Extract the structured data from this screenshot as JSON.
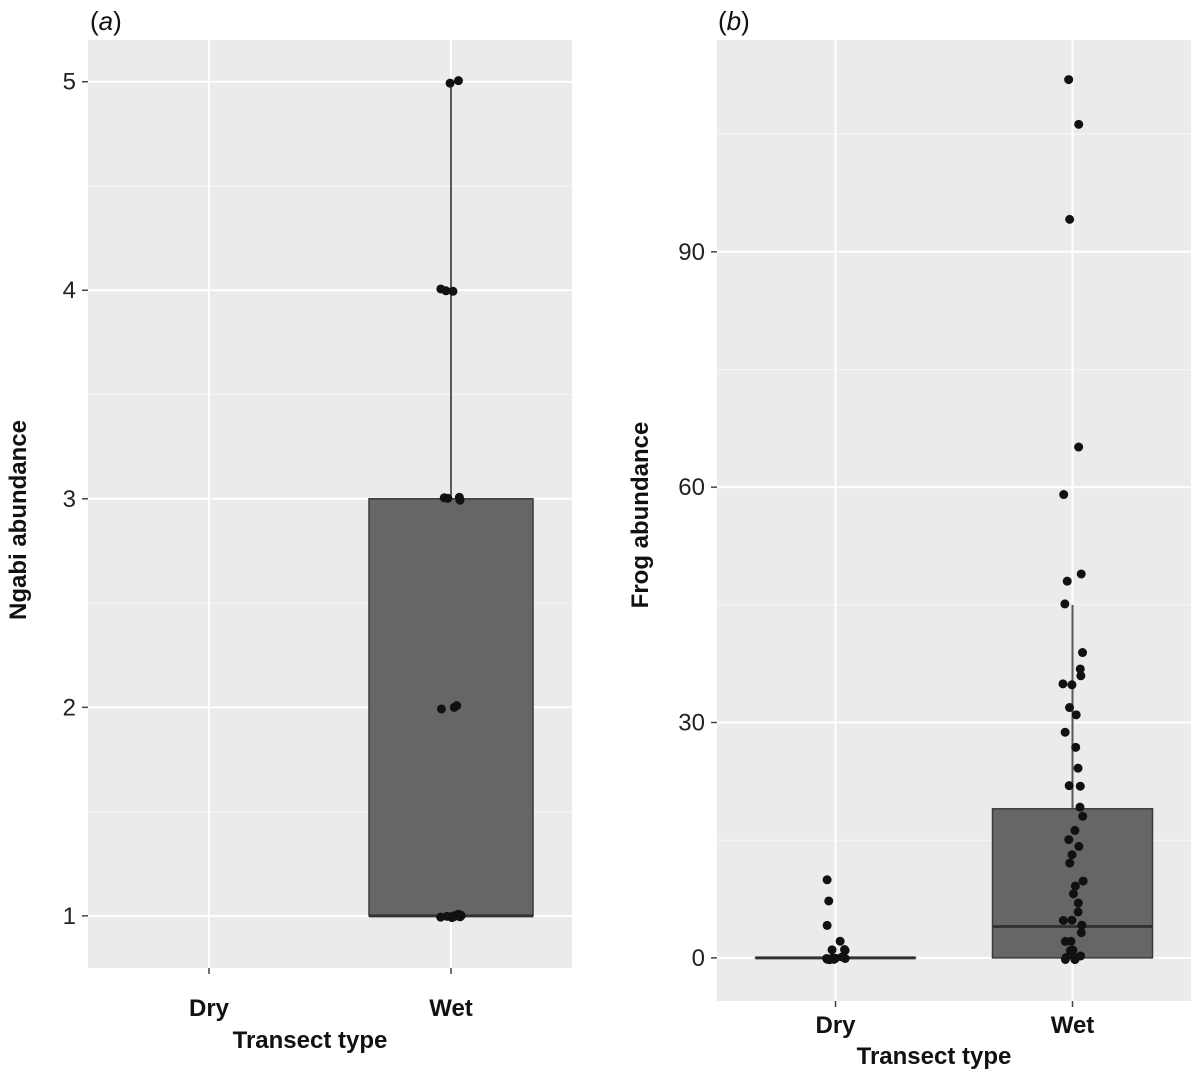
{
  "chart_data": [
    {
      "type": "box",
      "panel_label": "a",
      "xlabel": "Transect type",
      "ylabel": "Ngabi abundance",
      "categories": [
        "Dry",
        "Wet"
      ],
      "ylim": [
        0.75,
        5.2
      ],
      "yticks": [
        1,
        2,
        3,
        4,
        5
      ],
      "grid": true,
      "boxes": [
        null,
        {
          "category": "Wet",
          "q1": 1,
          "median": 1,
          "q3": 3,
          "whisker_low": 1,
          "whisker_high": 5
        }
      ],
      "points": [
        {
          "category": "Wet",
          "values": [
            5,
            5,
            4,
            4,
            4,
            3,
            3,
            3,
            3,
            2,
            2,
            2,
            1,
            1,
            1,
            1,
            1,
            1,
            1,
            1,
            1,
            1,
            1,
            1
          ]
        }
      ]
    },
    {
      "type": "box",
      "panel_label": "b",
      "xlabel": "Transect type",
      "ylabel": "Frog abundance",
      "categories": [
        "Dry",
        "Wet"
      ],
      "ylim": [
        -5.5,
        117
      ],
      "yticks": [
        0,
        30,
        60,
        90
      ],
      "grid": true,
      "boxes": [
        {
          "category": "Dry",
          "q1": 0,
          "median": 0,
          "q3": 0,
          "whisker_low": 0,
          "whisker_high": 0
        },
        {
          "category": "Wet",
          "q1": 0,
          "median": 4,
          "q3": 19,
          "whisker_low": 0,
          "whisker_high": 45
        }
      ],
      "points": [
        {
          "category": "Dry",
          "values": [
            10,
            7,
            4,
            2,
            1,
            1,
            1,
            0,
            0,
            0,
            0,
            0,
            0,
            0,
            0,
            0
          ]
        },
        {
          "category": "Wet",
          "values": [
            112,
            106,
            94,
            65,
            59,
            49,
            48,
            45,
            39,
            37,
            36,
            35,
            35,
            32,
            31,
            29,
            27,
            24,
            22,
            22,
            19,
            18,
            16,
            15,
            14,
            13,
            12,
            10,
            9,
            8,
            7,
            6,
            5,
            5,
            4,
            3,
            2,
            2,
            1,
            1,
            0,
            0,
            0,
            0,
            0,
            0
          ]
        }
      ]
    }
  ]
}
